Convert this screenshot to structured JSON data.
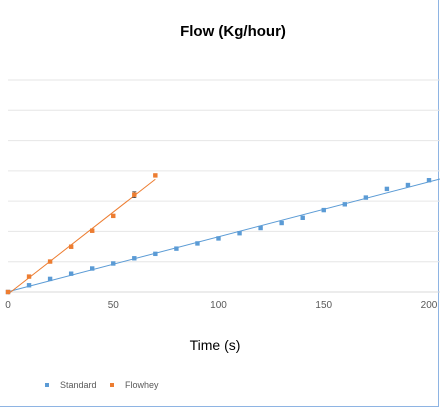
{
  "chart_data": {
    "type": "scatter",
    "title": "Flow (Kg/hour)",
    "xlabel": "Time (s)",
    "ylabel": "",
    "xlim": [
      0,
      200
    ],
    "x_ticks": [
      0,
      50,
      100,
      150,
      200
    ],
    "ylim": [
      0,
      0.11
    ],
    "grid": true,
    "legend": "bottom-left",
    "series": [
      {
        "name": "Standard",
        "color": "#5b9bd5",
        "trendline": true,
        "x": [
          0,
          10,
          20,
          30,
          40,
          50,
          60,
          70,
          80,
          90,
          100,
          110,
          120,
          130,
          140,
          150,
          160,
          170,
          180,
          190,
          200
        ],
        "y": [
          0,
          0.0035,
          0.0068,
          0.0095,
          0.0122,
          0.0148,
          0.0175,
          0.0198,
          0.0225,
          0.0252,
          0.0278,
          0.0305,
          0.0332,
          0.0358,
          0.0385,
          0.0425,
          0.0455,
          0.049,
          0.0535,
          0.0555,
          0.058
        ]
      },
      {
        "name": "Flowhey",
        "color": "#ed7d31",
        "trendline": true,
        "x": [
          0,
          10,
          20,
          30,
          40,
          50,
          60,
          70
        ],
        "y": [
          0,
          0.008,
          0.0158,
          0.0235,
          0.0318,
          0.0395,
          0.0505,
          0.0605
        ],
        "y_err": [
          0.0005,
          0.0005,
          0.0005,
          0.0008,
          0.0008,
          0.0006,
          0.0015,
          0.0003
        ]
      }
    ]
  }
}
